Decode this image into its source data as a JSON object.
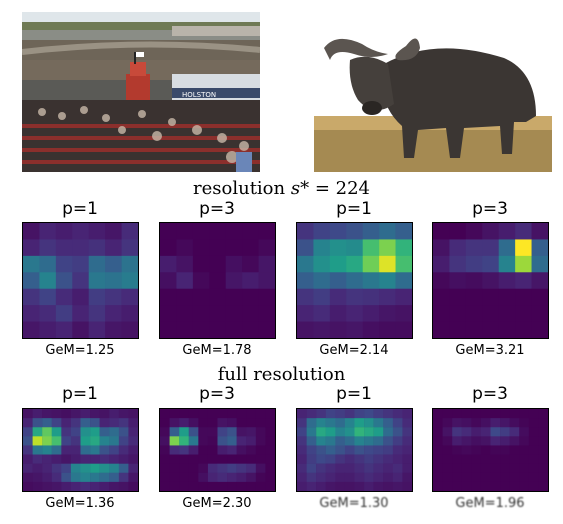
{
  "section_titles": {
    "resolution_prefix": "resolution ",
    "resolution_var": "s*",
    "resolution_value": " = 224",
    "full": "full resolution"
  },
  "photos": {
    "race_banner": "HOLSTON"
  },
  "rows": [
    {
      "heatmaps": [
        {
          "p_label": "p=1",
          "gem_label": "GeM=1.25",
          "rows": 7,
          "cols": 7,
          "values": [
            [
              0.05,
              0.1,
              0.08,
              0.1,
              0.08,
              0.06,
              0.12
            ],
            [
              0.1,
              0.15,
              0.12,
              0.12,
              0.14,
              0.1,
              0.15
            ],
            [
              0.4,
              0.35,
              0.2,
              0.18,
              0.35,
              0.3,
              0.38
            ],
            [
              0.3,
              0.45,
              0.25,
              0.15,
              0.4,
              0.38,
              0.42
            ],
            [
              0.15,
              0.2,
              0.12,
              0.08,
              0.18,
              0.15,
              0.12
            ],
            [
              0.1,
              0.12,
              0.18,
              0.1,
              0.15,
              0.1,
              0.08
            ],
            [
              0.06,
              0.08,
              0.1,
              0.05,
              0.1,
              0.06,
              0.05
            ]
          ]
        },
        {
          "p_label": "p=3",
          "gem_label": "GeM=1.78",
          "rows": 7,
          "cols": 7,
          "values": [
            [
              0.0,
              0.0,
              0.0,
              0.0,
              0.0,
              0.0,
              0.0
            ],
            [
              0.0,
              0.02,
              0.0,
              0.0,
              0.0,
              0.0,
              0.02
            ],
            [
              0.08,
              0.05,
              0.0,
              0.0,
              0.04,
              0.02,
              0.06
            ],
            [
              0.04,
              0.1,
              0.02,
              0.0,
              0.06,
              0.08,
              0.06
            ],
            [
              0.0,
              0.0,
              0.0,
              0.0,
              0.0,
              0.0,
              0.0
            ],
            [
              0.0,
              0.0,
              0.0,
              0.0,
              0.0,
              0.0,
              0.0
            ],
            [
              0.0,
              0.0,
              0.0,
              0.0,
              0.0,
              0.0,
              0.0
            ]
          ]
        },
        {
          "p_label": "p=1",
          "gem_label": "GeM=2.14",
          "rows": 7,
          "cols": 7,
          "values": [
            [
              0.15,
              0.2,
              0.22,
              0.25,
              0.3,
              0.35,
              0.3
            ],
            [
              0.25,
              0.45,
              0.5,
              0.48,
              0.7,
              0.8,
              0.65
            ],
            [
              0.4,
              0.5,
              0.55,
              0.6,
              0.78,
              0.95,
              0.7
            ],
            [
              0.3,
              0.35,
              0.3,
              0.35,
              0.4,
              0.45,
              0.35
            ],
            [
              0.15,
              0.18,
              0.12,
              0.15,
              0.14,
              0.12,
              0.1
            ],
            [
              0.1,
              0.12,
              0.08,
              0.1,
              0.08,
              0.06,
              0.05
            ],
            [
              0.05,
              0.06,
              0.05,
              0.06,
              0.04,
              0.03,
              0.03
            ]
          ]
        },
        {
          "p_label": "p=3",
          "gem_label": "GeM=3.21",
          "rows": 7,
          "cols": 7,
          "values": [
            [
              0.0,
              0.0,
              0.02,
              0.05,
              0.08,
              0.12,
              0.05
            ],
            [
              0.05,
              0.12,
              0.15,
              0.15,
              0.35,
              1.0,
              0.3
            ],
            [
              0.08,
              0.15,
              0.18,
              0.2,
              0.45,
              0.85,
              0.35
            ],
            [
              0.02,
              0.04,
              0.03,
              0.05,
              0.08,
              0.1,
              0.06
            ],
            [
              0.0,
              0.0,
              0.0,
              0.0,
              0.0,
              0.0,
              0.0
            ],
            [
              0.0,
              0.0,
              0.0,
              0.0,
              0.0,
              0.0,
              0.0
            ],
            [
              0.0,
              0.0,
              0.0,
              0.0,
              0.0,
              0.0,
              0.0
            ]
          ]
        }
      ]
    },
    {
      "heatmaps": [
        {
          "p_label": "p=1",
          "gem_label": "GeM=1.36",
          "rows": 9,
          "cols": 12,
          "values": [
            [
              0.05,
              0.08,
              0.06,
              0.05,
              0.04,
              0.06,
              0.08,
              0.06,
              0.05,
              0.08,
              0.06,
              0.05
            ],
            [
              0.1,
              0.25,
              0.3,
              0.2,
              0.1,
              0.15,
              0.3,
              0.25,
              0.1,
              0.12,
              0.15,
              0.08
            ],
            [
              0.2,
              0.6,
              0.75,
              0.55,
              0.15,
              0.2,
              0.5,
              0.55,
              0.3,
              0.35,
              0.25,
              0.1
            ],
            [
              0.25,
              0.9,
              0.8,
              0.7,
              0.2,
              0.15,
              0.55,
              0.6,
              0.45,
              0.4,
              0.2,
              0.12
            ],
            [
              0.15,
              0.4,
              0.45,
              0.35,
              0.1,
              0.1,
              0.35,
              0.4,
              0.25,
              0.2,
              0.12,
              0.08
            ],
            [
              0.08,
              0.12,
              0.1,
              0.08,
              0.06,
              0.08,
              0.1,
              0.1,
              0.12,
              0.1,
              0.08,
              0.06
            ],
            [
              0.1,
              0.08,
              0.1,
              0.15,
              0.2,
              0.45,
              0.5,
              0.55,
              0.5,
              0.45,
              0.3,
              0.1
            ],
            [
              0.05,
              0.06,
              0.08,
              0.12,
              0.25,
              0.4,
              0.45,
              0.4,
              0.35,
              0.3,
              0.15,
              0.06
            ],
            [
              0.03,
              0.04,
              0.05,
              0.06,
              0.08,
              0.1,
              0.12,
              0.1,
              0.08,
              0.06,
              0.05,
              0.03
            ]
          ]
        },
        {
          "p_label": "p=3",
          "gem_label": "GeM=2.30",
          "rows": 9,
          "cols": 12,
          "values": [
            [
              0.0,
              0.0,
              0.0,
              0.0,
              0.0,
              0.0,
              0.0,
              0.0,
              0.0,
              0.0,
              0.0,
              0.0
            ],
            [
              0.0,
              0.05,
              0.08,
              0.04,
              0.0,
              0.0,
              0.05,
              0.04,
              0.0,
              0.0,
              0.0,
              0.0
            ],
            [
              0.02,
              0.3,
              0.55,
              0.25,
              0.02,
              0.02,
              0.2,
              0.25,
              0.05,
              0.06,
              0.02,
              0.0
            ],
            [
              0.04,
              0.8,
              0.65,
              0.4,
              0.02,
              0.01,
              0.25,
              0.3,
              0.1,
              0.08,
              0.02,
              0.0
            ],
            [
              0.01,
              0.12,
              0.15,
              0.08,
              0.0,
              0.0,
              0.08,
              0.1,
              0.04,
              0.02,
              0.0,
              0.0
            ],
            [
              0.0,
              0.0,
              0.0,
              0.0,
              0.0,
              0.0,
              0.0,
              0.0,
              0.0,
              0.0,
              0.0,
              0.0
            ],
            [
              0.0,
              0.0,
              0.0,
              0.0,
              0.02,
              0.12,
              0.15,
              0.18,
              0.15,
              0.12,
              0.04,
              0.0
            ],
            [
              0.0,
              0.0,
              0.0,
              0.0,
              0.04,
              0.1,
              0.12,
              0.1,
              0.08,
              0.05,
              0.01,
              0.0
            ],
            [
              0.0,
              0.0,
              0.0,
              0.0,
              0.0,
              0.0,
              0.0,
              0.0,
              0.0,
              0.0,
              0.0,
              0.0
            ]
          ]
        },
        {
          "p_label": "p=1",
          "gem_label": "GeM=1.30",
          "rows": 9,
          "cols": 12,
          "values": [
            [
              0.1,
              0.12,
              0.15,
              0.2,
              0.18,
              0.15,
              0.2,
              0.22,
              0.18,
              0.15,
              0.12,
              0.1
            ],
            [
              0.15,
              0.35,
              0.45,
              0.4,
              0.35,
              0.45,
              0.55,
              0.5,
              0.4,
              0.3,
              0.2,
              0.12
            ],
            [
              0.2,
              0.4,
              0.6,
              0.55,
              0.45,
              0.5,
              0.65,
              0.6,
              0.55,
              0.35,
              0.25,
              0.15
            ],
            [
              0.15,
              0.3,
              0.45,
              0.4,
              0.3,
              0.35,
              0.45,
              0.4,
              0.35,
              0.25,
              0.18,
              0.12
            ],
            [
              0.12,
              0.2,
              0.25,
              0.3,
              0.25,
              0.2,
              0.25,
              0.22,
              0.2,
              0.18,
              0.12,
              0.1
            ],
            [
              0.1,
              0.18,
              0.22,
              0.2,
              0.15,
              0.12,
              0.15,
              0.18,
              0.15,
              0.12,
              0.1,
              0.08
            ],
            [
              0.12,
              0.2,
              0.15,
              0.12,
              0.1,
              0.1,
              0.12,
              0.15,
              0.12,
              0.1,
              0.12,
              0.08
            ],
            [
              0.1,
              0.15,
              0.12,
              0.1,
              0.08,
              0.08,
              0.1,
              0.12,
              0.1,
              0.08,
              0.1,
              0.06
            ],
            [
              0.08,
              0.1,
              0.08,
              0.06,
              0.05,
              0.05,
              0.06,
              0.08,
              0.06,
              0.05,
              0.06,
              0.05
            ]
          ]
        },
        {
          "p_label": "p=3",
          "gem_label": "GeM=1.96",
          "rows": 9,
          "cols": 12,
          "values": [
            [
              0.0,
              0.0,
              0.0,
              0.0,
              0.0,
              0.0,
              0.0,
              0.0,
              0.0,
              0.0,
              0.0,
              0.0
            ],
            [
              0.0,
              0.02,
              0.05,
              0.04,
              0.02,
              0.04,
              0.08,
              0.06,
              0.03,
              0.01,
              0.0,
              0.0
            ],
            [
              0.0,
              0.05,
              0.15,
              0.12,
              0.08,
              0.1,
              0.22,
              0.18,
              0.12,
              0.03,
              0.0,
              0.0
            ],
            [
              0.0,
              0.02,
              0.08,
              0.06,
              0.04,
              0.05,
              0.1,
              0.08,
              0.05,
              0.02,
              0.0,
              0.0
            ],
            [
              0.0,
              0.0,
              0.01,
              0.02,
              0.01,
              0.0,
              0.01,
              0.01,
              0.0,
              0.0,
              0.0,
              0.0
            ],
            [
              0.0,
              0.0,
              0.0,
              0.0,
              0.0,
              0.0,
              0.0,
              0.0,
              0.0,
              0.0,
              0.0,
              0.0
            ],
            [
              0.0,
              0.0,
              0.0,
              0.0,
              0.0,
              0.0,
              0.0,
              0.0,
              0.0,
              0.0,
              0.0,
              0.0
            ],
            [
              0.0,
              0.0,
              0.0,
              0.0,
              0.0,
              0.0,
              0.0,
              0.0,
              0.0,
              0.0,
              0.0,
              0.0
            ],
            [
              0.0,
              0.0,
              0.0,
              0.0,
              0.0,
              0.0,
              0.0,
              0.0,
              0.0,
              0.0,
              0.0,
              0.0
            ]
          ]
        }
      ]
    }
  ]
}
